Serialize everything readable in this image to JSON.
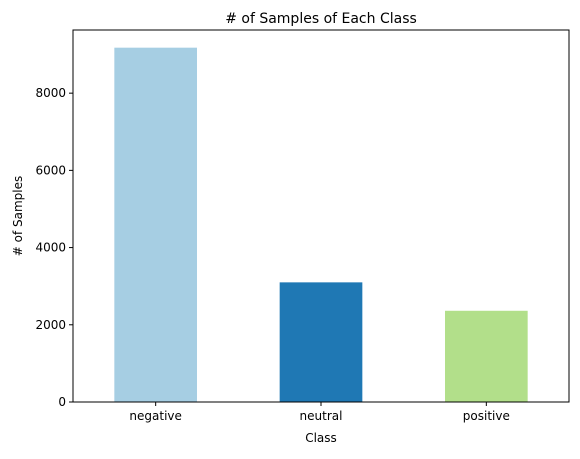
{
  "chart_data": {
    "type": "bar",
    "title": "# of Samples of Each Class",
    "xlabel": "Class",
    "ylabel": "# of Samples",
    "categories": [
      "negative",
      "neutral",
      "positive"
    ],
    "values": [
      9178,
      3099,
      2363
    ],
    "colors": [
      "#a6cee3",
      "#1f78b4",
      "#b2df8a"
    ],
    "ylim": [
      0,
      9636
    ],
    "yticks": [
      0,
      2000,
      4000,
      6000,
      8000
    ],
    "grid": false,
    "legend": false
  }
}
